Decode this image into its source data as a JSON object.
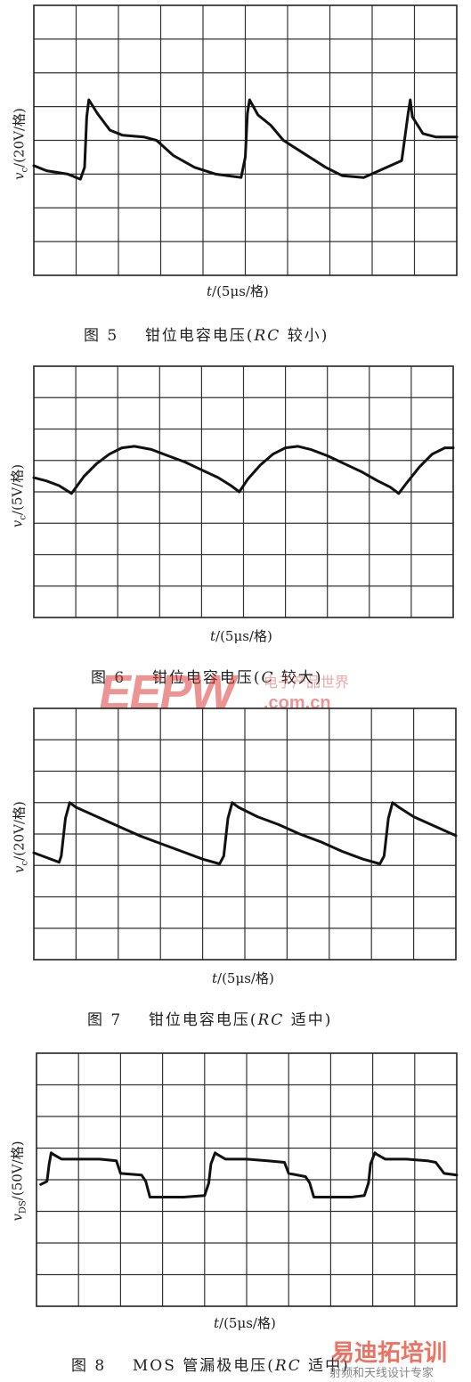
{
  "figures": [
    {
      "caption_num": "图 5",
      "caption_text": "钳位电容电压(",
      "caption_italic": "RC",
      "caption_end": " 较小)",
      "ylabel_sym": "v",
      "ylabel_sub": "c",
      "ylabel_unit": "/(20V/格)",
      "xlabel_sym": "t",
      "xlabel_unit": "/(5μs/格)"
    },
    {
      "caption_num": "图 6",
      "caption_text": "钳位电容电压(",
      "caption_italic": "C",
      "caption_end": " 较大)",
      "ylabel_sym": "v",
      "ylabel_sub": "c",
      "ylabel_unit": "/(5V/格)",
      "xlabel_sym": "t",
      "xlabel_unit": "/(5μs/格)"
    },
    {
      "caption_num": "图 7",
      "caption_text": "钳位电容电压(",
      "caption_italic": "RC",
      "caption_end": " 适中)",
      "ylabel_sym": "v",
      "ylabel_sub": "c",
      "ylabel_unit": "/(20V/格)",
      "xlabel_sym": "t",
      "xlabel_unit": "/(5μs/格)"
    },
    {
      "caption_num": "图 8",
      "caption_text": "MOS 管漏极电压(",
      "caption_italic": "RC",
      "caption_end": " 适中)",
      "ylabel_sym": "v",
      "ylabel_sub": "DS",
      "ylabel_unit": "/(50V/格)",
      "xlabel_sym": "t",
      "xlabel_unit": "/(5μs/格)"
    }
  ],
  "watermark": {
    "eepw": "EEPW",
    "domain": ".com.cn",
    "tagline": "电子产品世界",
    "bottom_brand": "易迪拓培训",
    "bottom_sub": "射频和天线设计专家"
  },
  "chart_data": [
    {
      "type": "line",
      "grid": true,
      "x_divisions": 10,
      "y_divisions": 8,
      "xlim": [
        0,
        10
      ],
      "ylim": [
        0,
        8
      ],
      "series": [
        {
          "x": [
            0,
            0.3,
            0.8,
            1.1,
            1.2,
            1.25,
            1.3,
            1.5,
            1.8,
            2.1,
            2.6,
            2.9,
            3.3,
            3.8,
            4.3,
            4.9,
            5.0,
            5.05,
            5.1,
            5.3,
            5.6,
            5.9,
            6.4,
            6.9,
            7.3,
            7.8,
            8.7,
            8.85,
            8.9,
            8.95,
            9.2,
            9.5,
            10.0
          ],
          "y": [
            3.25,
            3.1,
            3.0,
            2.85,
            3.2,
            4.7,
            5.2,
            4.8,
            4.3,
            4.15,
            4.1,
            4.0,
            3.55,
            3.2,
            3.0,
            2.9,
            3.5,
            4.8,
            5.2,
            4.75,
            4.45,
            4.0,
            3.6,
            3.2,
            2.95,
            2.9,
            3.4,
            4.8,
            5.2,
            4.7,
            4.2,
            4.1,
            4.1
          ]
        }
      ]
    },
    {
      "type": "line",
      "grid": true,
      "x_divisions": 10,
      "y_divisions": 8,
      "xlim": [
        0,
        10
      ],
      "ylim": [
        0,
        8
      ],
      "series": [
        {
          "x": [
            0,
            0.3,
            0.6,
            0.9,
            1.2,
            1.5,
            1.8,
            2.1,
            2.4,
            2.8,
            3.2,
            3.6,
            4.0,
            4.4,
            4.7,
            4.9,
            5.1,
            5.4,
            5.7,
            6.0,
            6.3,
            6.6,
            7.0,
            7.4,
            7.8,
            8.2,
            8.5,
            8.7,
            8.9,
            9.2,
            9.5,
            9.8,
            10.0
          ],
          "y": [
            4.45,
            4.35,
            4.2,
            3.95,
            4.5,
            4.9,
            5.2,
            5.4,
            5.45,
            5.35,
            5.15,
            4.95,
            4.7,
            4.45,
            4.2,
            4.0,
            4.4,
            4.85,
            5.2,
            5.4,
            5.45,
            5.35,
            5.15,
            4.9,
            4.65,
            4.35,
            4.15,
            3.95,
            4.3,
            4.8,
            5.2,
            5.4,
            5.4
          ]
        }
      ]
    },
    {
      "type": "line",
      "grid": true,
      "x_divisions": 10,
      "y_divisions": 8,
      "xlim": [
        0,
        10
      ],
      "ylim": [
        0,
        8
      ],
      "series": [
        {
          "x": [
            0,
            0.3,
            0.6,
            0.65,
            0.75,
            0.85,
            1.0,
            1.5,
            2.0,
            2.5,
            3.0,
            3.5,
            4.0,
            4.4,
            4.5,
            4.6,
            4.7,
            4.85,
            5.3,
            5.8,
            6.3,
            6.8,
            7.3,
            7.8,
            8.2,
            8.3,
            8.4,
            8.5,
            8.65,
            9.0,
            9.5,
            10.0
          ],
          "y": [
            3.4,
            3.25,
            3.1,
            3.3,
            4.5,
            5.0,
            4.85,
            4.55,
            4.25,
            3.95,
            3.7,
            3.45,
            3.2,
            3.05,
            3.3,
            4.5,
            5.0,
            4.85,
            4.55,
            4.3,
            4.0,
            3.75,
            3.45,
            3.2,
            3.05,
            3.3,
            4.5,
            5.0,
            4.85,
            4.55,
            4.25,
            3.95
          ]
        }
      ]
    },
    {
      "type": "line",
      "grid": true,
      "x_divisions": 10,
      "y_divisions": 8,
      "xlim": [
        0,
        10
      ],
      "ylim": [
        0,
        8
      ],
      "series": [
        {
          "x": [
            0.1,
            0.25,
            0.3,
            0.35,
            0.4,
            0.6,
            1.0,
            1.5,
            1.9,
            2.0,
            2.5,
            2.6,
            2.7,
            3.0,
            3.5,
            4.0,
            4.1,
            4.15,
            4.25,
            4.3,
            4.5,
            5.0,
            5.5,
            5.9,
            6.0,
            6.4,
            6.5,
            6.6,
            7.0,
            7.5,
            7.8,
            7.9,
            7.95,
            8.05,
            8.1,
            8.3,
            8.8,
            9.3,
            9.5,
            9.7,
            10.0
          ],
          "y": [
            3.85,
            3.95,
            4.5,
            4.85,
            4.8,
            4.65,
            4.65,
            4.65,
            4.6,
            4.2,
            4.15,
            3.95,
            3.45,
            3.45,
            3.45,
            3.5,
            3.9,
            4.5,
            4.85,
            4.8,
            4.65,
            4.65,
            4.6,
            4.55,
            4.2,
            4.1,
            3.9,
            3.45,
            3.45,
            3.45,
            3.5,
            3.9,
            4.5,
            4.85,
            4.8,
            4.65,
            4.65,
            4.6,
            4.55,
            4.2,
            4.15
          ]
        }
      ]
    }
  ]
}
